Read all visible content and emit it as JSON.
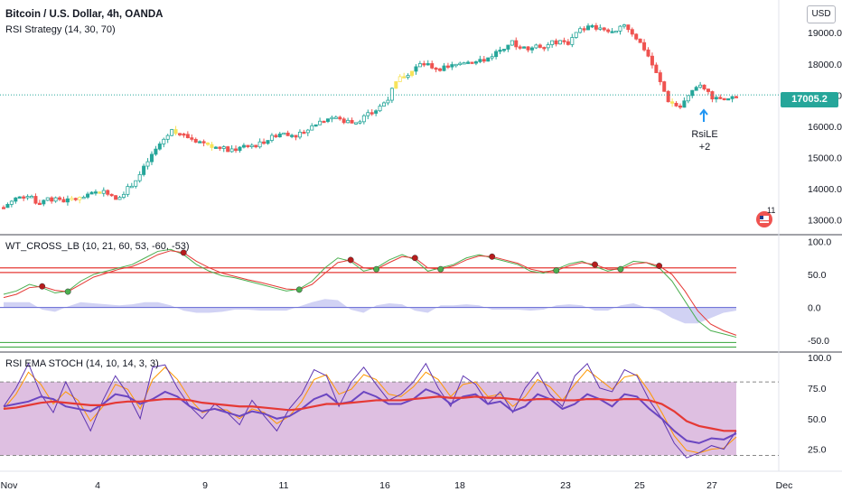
{
  "header": {
    "symbol_title": "Bitcoin / U.S. Dollar, 4h, OANDA",
    "strategy_label": "RSI Strategy (14, 30, 70)",
    "currency_button": "USD",
    "last_price": "17005.2"
  },
  "signal": {
    "label": "RsiLE",
    "qty": "+2"
  },
  "badge": {
    "count": "11"
  },
  "colors": {
    "up": "#26a69a",
    "down": "#ef5350",
    "neutral": "#f7e35a",
    "wt_green": "#4caf50",
    "wt_red": "#e53935",
    "wt_band": "#7b7fe0",
    "stoch_k": "#6b46c1",
    "stoch_d": "#ff9800",
    "rsi_ema": "#e53935",
    "stoch_bg": "#d8b4dc",
    "signal_arrow": "#2196f3"
  },
  "x_axis": {
    "labels": [
      "Nov",
      "4",
      "9",
      "11",
      "16",
      "18",
      "23",
      "25",
      "27",
      "Dec"
    ]
  },
  "chart_data": [
    {
      "type": "candlestick",
      "title": "Bitcoin / U.S. Dollar, 4h, OANDA",
      "ylim": [
        12700,
        19700
      ],
      "yticks": [
        "19000.0",
        "18000.0",
        "17000.0",
        "16000.0",
        "15000.0",
        "14000.0",
        "13000.0"
      ],
      "ytick_values": [
        19000,
        18000,
        17000,
        16000,
        15000,
        14000,
        13000
      ],
      "close_path": [
        13400,
        13700,
        13800,
        13550,
        13700,
        13600,
        13650,
        13700,
        13850,
        13950,
        13700,
        14000,
        14400,
        15000,
        15500,
        15900,
        15700,
        15550,
        15450,
        15300,
        15250,
        15300,
        15350,
        15500,
        15700,
        15800,
        15700,
        15900,
        16150,
        16300,
        16200,
        16100,
        16300,
        16500,
        16850,
        17500,
        17700,
        18000,
        17900,
        17850,
        17950,
        18100,
        18050,
        18200,
        18450,
        18700,
        18500,
        18550,
        18600,
        18700,
        18650,
        19050,
        19200,
        19100,
        19000,
        19300,
        18900,
        18400,
        17600,
        16800,
        16600,
        17100,
        17300,
        16900,
        16800,
        17005
      ],
      "anchor_bars": [
        0,
        30,
        60,
        90,
        120,
        150,
        180,
        210,
        240,
        270,
        300,
        330,
        360,
        390,
        420,
        450,
        480,
        510,
        540,
        570,
        600,
        630,
        660,
        690,
        720,
        750,
        780,
        810,
        840,
        870,
        900,
        930,
        960,
        990,
        1020,
        1050,
        1080,
        1110,
        1140,
        1170,
        1200,
        1230,
        1260,
        1290,
        1320,
        1350,
        1380,
        1410,
        1440,
        1470,
        1500,
        1530,
        1560,
        1590,
        1620,
        1650,
        1680,
        1710,
        1740,
        1770,
        1780,
        1790,
        1800,
        1810,
        1820,
        1830
      ],
      "n_bars": 184,
      "last_price": 17005.2
    },
    {
      "type": "line",
      "title": "WT_CROSS_LB (10, 21, 60, 53, -60, -53)",
      "ylim": [
        -62,
        102
      ],
      "yticks": [
        "100.0",
        "50.0",
        "0.0",
        "-50.0"
      ],
      "ytick_values": [
        100,
        50,
        0,
        -50
      ],
      "levels": [
        60,
        53,
        -60,
        -53
      ],
      "series": [
        {
          "role": "wt1",
          "values": [
            20,
            25,
            35,
            30,
            22,
            25,
            40,
            50,
            55,
            60,
            65,
            75,
            85,
            88,
            80,
            65,
            55,
            48,
            45,
            40,
            35,
            30,
            25,
            28,
            40,
            60,
            75,
            70,
            55,
            60,
            72,
            80,
            72,
            55,
            60,
            65,
            75,
            80,
            75,
            70,
            65,
            55,
            52,
            58,
            66,
            70,
            62,
            55,
            60,
            70,
            68,
            60,
            40,
            10,
            -20,
            -35,
            -40,
            -45
          ]
        },
        {
          "role": "wt2",
          "values": [
            15,
            20,
            30,
            32,
            26,
            24,
            35,
            46,
            52,
            58,
            62,
            70,
            80,
            86,
            83,
            70,
            60,
            52,
            47,
            42,
            38,
            33,
            28,
            27,
            35,
            52,
            68,
            72,
            60,
            58,
            68,
            77,
            75,
            60,
            58,
            63,
            72,
            78,
            77,
            72,
            67,
            58,
            54,
            56,
            63,
            68,
            65,
            58,
            58,
            66,
            68,
            63,
            50,
            25,
            -5,
            -25,
            -35,
            -42
          ]
        }
      ]
    },
    {
      "type": "line",
      "title": "RSI EMA STOCH (14, 10, 14, 3, 3)",
      "ylim": [
        10,
        100
      ],
      "yticks": [
        "100.0",
        "75.0",
        "50.0",
        "25.0"
      ],
      "ytick_values": [
        100,
        75,
        50,
        25
      ],
      "band": [
        80,
        20
      ],
      "series": [
        {
          "role": "k",
          "values": [
            60,
            75,
            95,
            70,
            55,
            80,
            60,
            40,
            65,
            85,
            70,
            50,
            92,
            94,
            75,
            60,
            50,
            62,
            55,
            45,
            65,
            52,
            40,
            58,
            70,
            90,
            85,
            60,
            80,
            92,
            78,
            65,
            70,
            80,
            95,
            75,
            60,
            85,
            78,
            62,
            72,
            55,
            75,
            88,
            70,
            60,
            85,
            95,
            75,
            72,
            90,
            85,
            65,
            50,
            30,
            18,
            22,
            28,
            25,
            40
          ]
        },
        {
          "role": "d",
          "values": [
            58,
            70,
            88,
            78,
            62,
            72,
            65,
            48,
            60,
            78,
            74,
            58,
            82,
            92,
            82,
            66,
            55,
            58,
            57,
            50,
            58,
            55,
            46,
            52,
            64,
            82,
            86,
            70,
            74,
            86,
            82,
            70,
            68,
            76,
            88,
            82,
            68,
            78,
            80,
            68,
            70,
            60,
            68,
            82,
            76,
            65,
            78,
            90,
            82,
            74,
            84,
            86,
            72,
            55,
            36,
            24,
            22,
            25,
            26,
            35
          ]
        },
        {
          "role": "rsi",
          "values": [
            60,
            62,
            64,
            68,
            66,
            60,
            58,
            56,
            62,
            70,
            68,
            62,
            66,
            72,
            68,
            60,
            56,
            58,
            55,
            52,
            56,
            54,
            50,
            52,
            58,
            66,
            70,
            62,
            64,
            72,
            68,
            62,
            62,
            66,
            74,
            70,
            62,
            68,
            70,
            62,
            64,
            56,
            60,
            70,
            66,
            58,
            62,
            70,
            66,
            60,
            70,
            68,
            58,
            50,
            40,
            32,
            30,
            34,
            33,
            38
          ]
        },
        {
          "role": "ema",
          "values": [
            58,
            59,
            61,
            63,
            64,
            63,
            62,
            61,
            61,
            63,
            64,
            64,
            65,
            66,
            66,
            65,
            63,
            62,
            61,
            60,
            60,
            59,
            58,
            57,
            58,
            60,
            62,
            62,
            63,
            64,
            65,
            65,
            65,
            66,
            67,
            68,
            67,
            67,
            68,
            67,
            67,
            66,
            65,
            66,
            66,
            65,
            65,
            66,
            66,
            65,
            66,
            66,
            65,
            62,
            56,
            48,
            44,
            42,
            40,
            40
          ]
        }
      ]
    }
  ]
}
